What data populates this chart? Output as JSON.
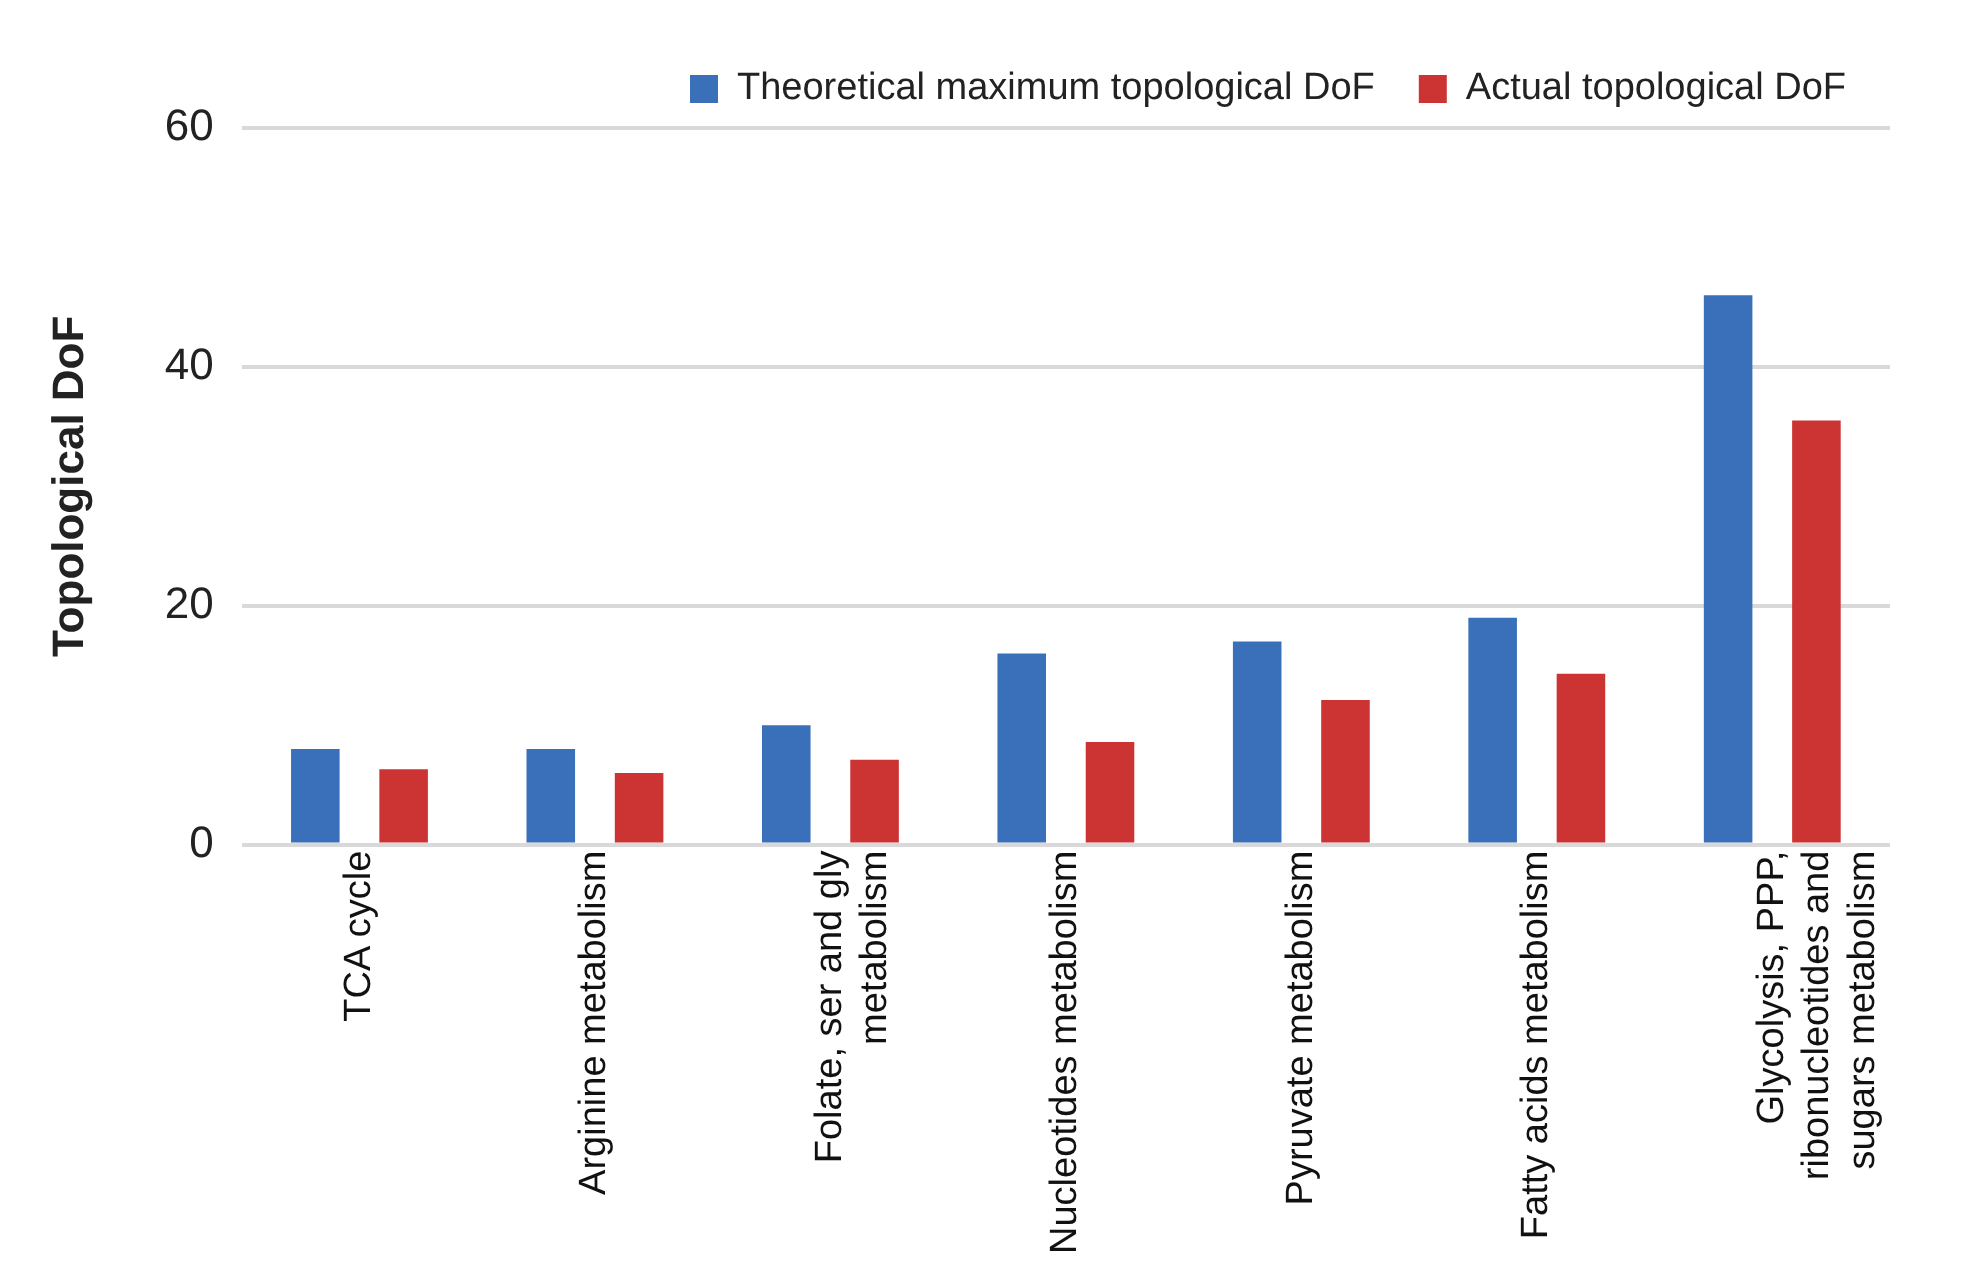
{
  "chart_data": {
    "type": "bar",
    "ylabel": "Topological DoF",
    "categories": [
      "TCA cycle",
      "Arginine metabolism",
      "Folate, ser and gly metabolism",
      "Nucleotides metabolism",
      "Pyruvate metabolism",
      "Fatty acids metabolism",
      "Glycolysis, PPP, ribonucleotides and sugars metabolism"
    ],
    "series": [
      {
        "name": "Theoretical maximum topological DoF",
        "color": "#3a6fba",
        "values": [
          8,
          8,
          10,
          16,
          17,
          19,
          46
        ]
      },
      {
        "name": "Actual topological DoF",
        "color": "#cc3333",
        "values": [
          6.3,
          6,
          7.1,
          8.6,
          12.1,
          14.3,
          35.5
        ]
      }
    ],
    "ylim": [
      0,
      60
    ],
    "yticks": [
      0,
      20,
      40,
      60
    ],
    "grid": "y",
    "legend": "top right"
  }
}
